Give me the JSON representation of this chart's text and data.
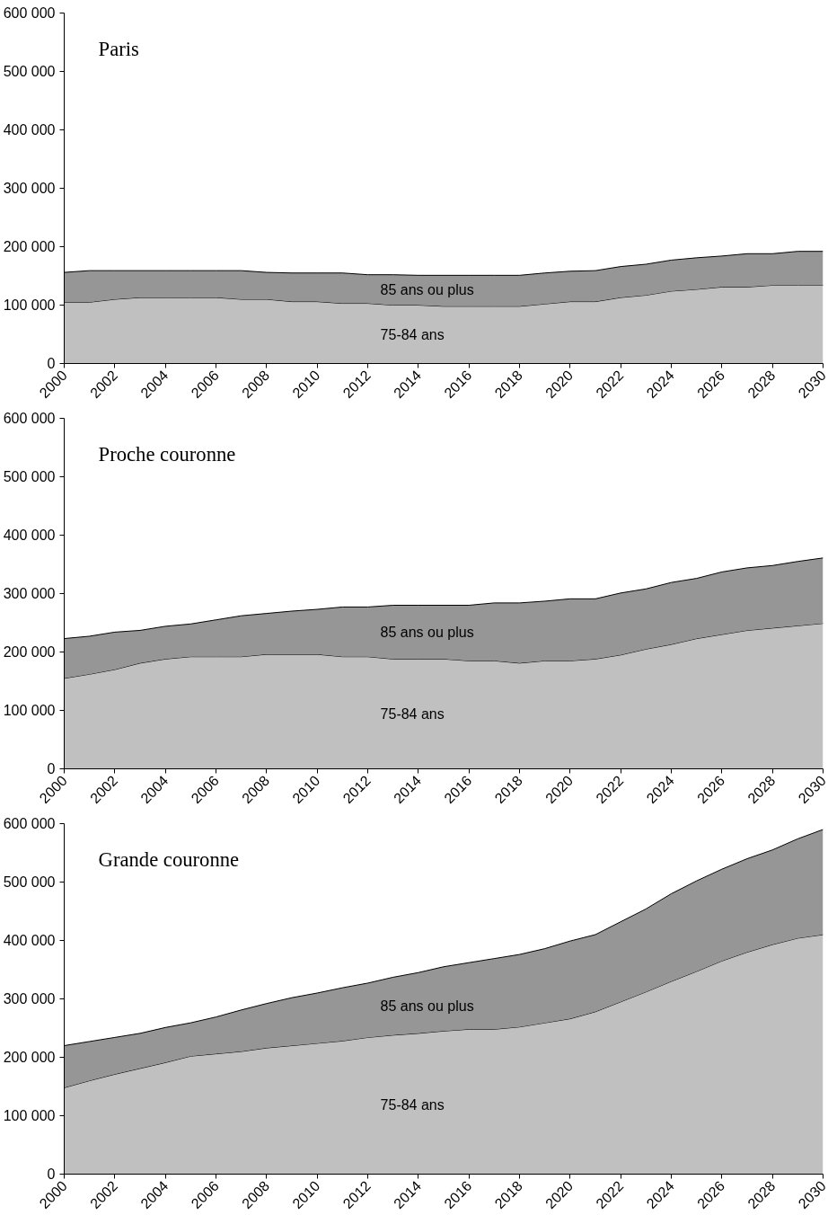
{
  "chart_data": [
    {
      "type": "area",
      "title": "Paris",
      "stacked": true,
      "x": [
        2000,
        2001,
        2002,
        2003,
        2004,
        2005,
        2006,
        2007,
        2008,
        2009,
        2010,
        2011,
        2012,
        2013,
        2014,
        2015,
        2016,
        2017,
        2018,
        2019,
        2020,
        2021,
        2022,
        2023,
        2024,
        2025,
        2026,
        2027,
        2028,
        2029,
        2030
      ],
      "series": [
        {
          "name": "75-84 ans",
          "color": "#c0c0c0",
          "values": [
            105000,
            105000,
            110000,
            113000,
            113000,
            113000,
            113000,
            110000,
            110000,
            106000,
            106000,
            103000,
            103000,
            100000,
            100000,
            98000,
            98000,
            98000,
            98000,
            102000,
            106000,
            106000,
            113000,
            117000,
            124000,
            127000,
            131000,
            131000,
            134000,
            134000,
            134000
          ]
        },
        {
          "name": "85 ans ou plus",
          "color": "#969696",
          "values": [
            51000,
            54000,
            49000,
            46000,
            46000,
            46000,
            46000,
            49000,
            46000,
            49000,
            49000,
            52000,
            49000,
            52000,
            51000,
            53000,
            53000,
            53000,
            53000,
            53000,
            52000,
            53000,
            53000,
            53000,
            53000,
            54000,
            53000,
            57000,
            54000,
            58000,
            58000
          ]
        }
      ],
      "xlim": [
        2000,
        2030
      ],
      "xticks": [
        2000,
        2002,
        2004,
        2006,
        2008,
        2010,
        2012,
        2014,
        2016,
        2018,
        2020,
        2022,
        2024,
        2026,
        2028,
        2030
      ],
      "ylim": [
        0,
        600000
      ],
      "yticks": [
        0,
        {
          "value": 100000,
          "label": "100 000"
        },
        {
          "value": 200000,
          "label": "200 000"
        },
        {
          "value": 300000,
          "label": "300 000"
        },
        {
          "value": 400000,
          "label": "400 000"
        },
        {
          "value": 500000,
          "label": "500 000"
        },
        {
          "value": 600000,
          "label": "600 000"
        }
      ],
      "grid": false,
      "legend": false
    },
    {
      "type": "area",
      "title": "Proche couronne",
      "stacked": true,
      "x": [
        2000,
        2001,
        2002,
        2003,
        2004,
        2005,
        2006,
        2007,
        2008,
        2009,
        2010,
        2011,
        2012,
        2013,
        2014,
        2015,
        2016,
        2017,
        2018,
        2019,
        2020,
        2021,
        2022,
        2023,
        2024,
        2025,
        2026,
        2027,
        2028,
        2029,
        2030
      ],
      "series": [
        {
          "name": "75-84 ans",
          "color": "#c0c0c0",
          "values": [
            155000,
            162000,
            170000,
            181000,
            188000,
            192000,
            192000,
            192000,
            196000,
            196000,
            196000,
            192000,
            192000,
            188000,
            188000,
            188000,
            185000,
            185000,
            181000,
            185000,
            185000,
            188000,
            195000,
            205000,
            213000,
            223000,
            230000,
            237000,
            241000,
            245000,
            249000
          ]
        },
        {
          "name": "85 ans ou plus",
          "color": "#969696",
          "values": [
            68000,
            65000,
            64000,
            56000,
            56000,
            56000,
            63000,
            70000,
            70000,
            74000,
            77000,
            85000,
            85000,
            92000,
            92000,
            92000,
            95000,
            99000,
            103000,
            102000,
            106000,
            103000,
            106000,
            103000,
            106000,
            103000,
            107000,
            107000,
            107000,
            110000,
            112000
          ]
        }
      ],
      "xlim": [
        2000,
        2030
      ],
      "xticks": [
        2000,
        2002,
        2004,
        2006,
        2008,
        2010,
        2012,
        2014,
        2016,
        2018,
        2020,
        2022,
        2024,
        2026,
        2028,
        2030
      ],
      "ylim": [
        0,
        600000
      ],
      "yticks": [
        0,
        {
          "value": 100000,
          "label": "100 000"
        },
        {
          "value": 200000,
          "label": "200 000"
        },
        {
          "value": 300000,
          "label": "300 000"
        },
        {
          "value": 400000,
          "label": "400 000"
        },
        {
          "value": 500000,
          "label": "500 000"
        },
        {
          "value": 600000,
          "label": "600 000"
        }
      ],
      "grid": false,
      "legend": false
    },
    {
      "type": "area",
      "title": "Grande couronne",
      "stacked": true,
      "x": [
        2000,
        2001,
        2002,
        2003,
        2004,
        2005,
        2006,
        2007,
        2008,
        2009,
        2010,
        2011,
        2012,
        2013,
        2014,
        2015,
        2016,
        2017,
        2018,
        2019,
        2020,
        2021,
        2022,
        2023,
        2024,
        2025,
        2026,
        2027,
        2028,
        2029,
        2030
      ],
      "series": [
        {
          "name": "75-84 ans",
          "color": "#c0c0c0",
          "values": [
            148000,
            160000,
            171000,
            181000,
            191000,
            202000,
            206000,
            210000,
            216000,
            220000,
            224000,
            228000,
            234000,
            238000,
            241000,
            245000,
            248000,
            248000,
            252000,
            259000,
            266000,
            278000,
            295000,
            312000,
            330000,
            347000,
            365000,
            380000,
            393000,
            404000,
            410000
          ]
        },
        {
          "name": "85 ans ou plus",
          "color": "#969696",
          "values": [
            72000,
            67000,
            63000,
            60000,
            60000,
            57000,
            63000,
            71000,
            76000,
            82000,
            86000,
            91000,
            93000,
            99000,
            104000,
            110000,
            114000,
            121000,
            124000,
            127000,
            133000,
            132000,
            137000,
            142000,
            150000,
            155000,
            157000,
            160000,
            162000,
            170000,
            180000
          ]
        }
      ],
      "xlim": [
        2000,
        2030
      ],
      "xticks": [
        2000,
        2002,
        2004,
        2006,
        2008,
        2010,
        2012,
        2014,
        2016,
        2018,
        2020,
        2022,
        2024,
        2026,
        2028,
        2030
      ],
      "ylim": [
        0,
        600000
      ],
      "yticks": [
        0,
        {
          "value": 100000,
          "label": "100 000"
        },
        {
          "value": 200000,
          "label": "200 000"
        },
        {
          "value": 300000,
          "label": "300 000"
        },
        {
          "value": 400000,
          "label": "400 000"
        },
        {
          "value": 500000,
          "label": "500 000"
        },
        {
          "value": 600000,
          "label": "600 000"
        }
      ],
      "grid": false,
      "legend": false
    }
  ]
}
